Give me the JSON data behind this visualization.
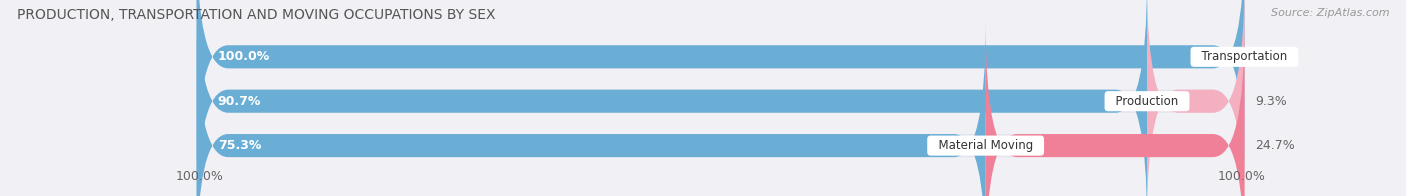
{
  "title": "PRODUCTION, TRANSPORTATION AND MOVING OCCUPATIONS BY SEX",
  "source": "Source: ZipAtlas.com",
  "categories": [
    "Transportation",
    "Production",
    "Material Moving"
  ],
  "male_values": [
    100.0,
    90.7,
    75.3
  ],
  "female_values": [
    0.0,
    9.3,
    24.7
  ],
  "male_color_dark": "#6aaed6",
  "male_color_light": "#aecce8",
  "female_color": "#f08098",
  "female_color_light": "#f4b0c0",
  "bar_bg_color": "#e4e4ec",
  "title_fontsize": 10,
  "source_fontsize": 8,
  "value_fontsize": 9,
  "cat_fontsize": 8.5,
  "legend_fontsize": 9,
  "bar_height": 0.52,
  "left_label": "100.0%",
  "right_label": "100.0%",
  "background_color": "#f0f0f5"
}
